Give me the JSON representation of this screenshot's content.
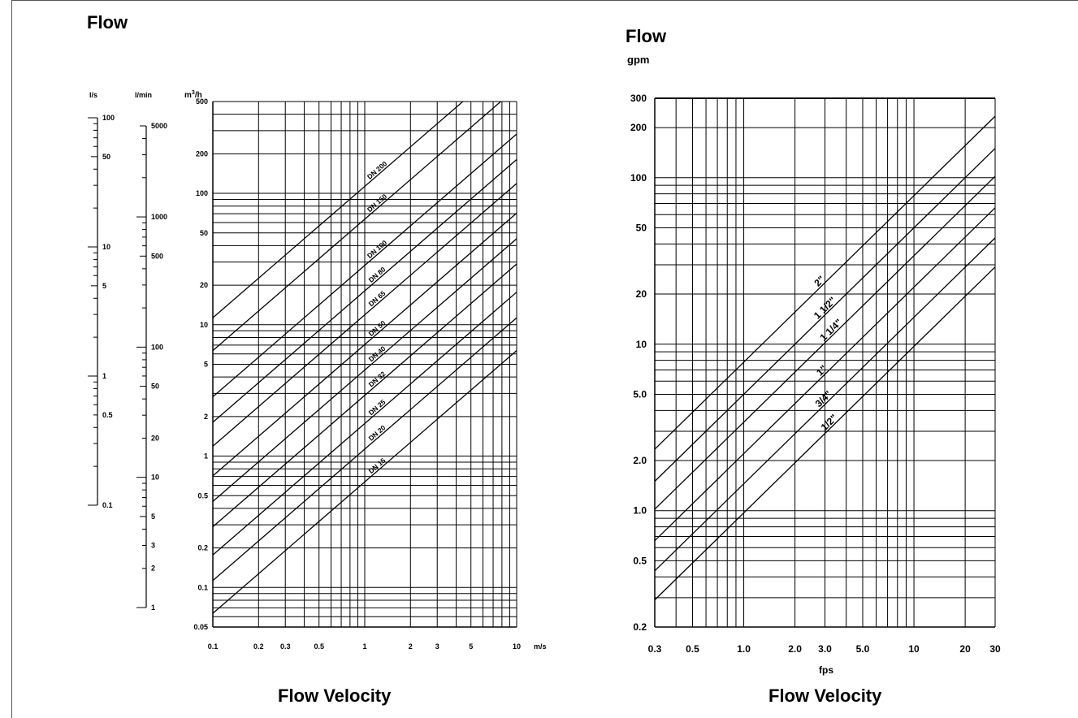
{
  "left": {
    "title": "Flow",
    "footer": "Flow Velocity"
  },
  "right": {
    "title": "Flow",
    "footer": "Flow Velocity",
    "ylabel": "gpm",
    "xlabel": "fps"
  },
  "chart_data": [
    {
      "type": "line",
      "title": "Flow",
      "xlabel": "Flow Velocity",
      "x_unit_label": "m/s",
      "ylabel": "m3/h",
      "x_scale": "log",
      "y_scale": "log",
      "xlim": [
        0.1,
        10
      ],
      "ylim": [
        0.05,
        500
      ],
      "x_ticks": [
        0.1,
        0.2,
        0.3,
        0.5,
        1,
        2,
        3,
        5,
        10
      ],
      "x_tick_labels": [
        "0.1",
        "0.2",
        "0.3",
        "0.5",
        "1",
        "2",
        "3",
        "5",
        "10"
      ],
      "y_ticks": [
        0.05,
        0.1,
        0.2,
        0.5,
        1,
        2,
        5,
        10,
        20,
        50,
        100,
        200,
        500
      ],
      "y_tick_labels": [
        "0.05",
        "0.1",
        "0.2",
        "0.5",
        "1",
        "2",
        "5",
        "10",
        "20",
        "50",
        "100",
        "200",
        "500"
      ],
      "series": [
        {
          "name": "DN 200",
          "flow_at_1ms": 113
        },
        {
          "name": "DN 150",
          "flow_at_1ms": 63.6
        },
        {
          "name": "DN 100",
          "flow_at_1ms": 28.3
        },
        {
          "name": "DN 80",
          "flow_at_1ms": 18.1
        },
        {
          "name": "DN 65",
          "flow_at_1ms": 11.9
        },
        {
          "name": "DN 50",
          "flow_at_1ms": 7.07
        },
        {
          "name": "DN 40",
          "flow_at_1ms": 4.52
        },
        {
          "name": "DN 32",
          "flow_at_1ms": 2.9
        },
        {
          "name": "DN 25",
          "flow_at_1ms": 1.77
        },
        {
          "name": "DN 20",
          "flow_at_1ms": 1.13
        },
        {
          "name": "DN 15",
          "flow_at_1ms": 0.636
        }
      ],
      "side_scales": [
        {
          "unit": "l/s",
          "range": [
            0.1,
            100
          ],
          "labels": [
            "100",
            "50",
            "10",
            "5",
            "1",
            "0.5",
            "0.1"
          ],
          "label_values": [
            100,
            50,
            10,
            5,
            1,
            0.5,
            0.1
          ]
        },
        {
          "unit": "l/min",
          "range": [
            1,
            5000
          ],
          "labels": [
            "5000",
            "1000",
            "500",
            "100",
            "50",
            "20",
            "10",
            "5",
            "3",
            "2",
            "1"
          ],
          "label_values": [
            5000,
            1000,
            500,
            100,
            50,
            20,
            10,
            5,
            3,
            2,
            1
          ]
        }
      ]
    },
    {
      "type": "line",
      "title": "Flow",
      "xlabel": "fps",
      "ylabel": "gpm",
      "x_scale": "log",
      "y_scale": "log",
      "xlim": [
        0.3,
        30
      ],
      "ylim": [
        0.2,
        300
      ],
      "x_ticks": [
        0.3,
        0.5,
        1,
        2,
        3,
        5,
        10,
        20,
        30
      ],
      "x_tick_labels": [
        "0.3",
        "0.5",
        "1.0",
        "2.0",
        "3.0",
        "5.0",
        "10",
        "20",
        "30"
      ],
      "y_ticks": [
        0.2,
        0.5,
        1,
        2,
        5,
        10,
        20,
        50,
        100,
        200,
        300
      ],
      "y_tick_labels": [
        "0.2",
        "0.5",
        "1.0",
        "2.0",
        "5.0",
        "10",
        "20",
        "50",
        "100",
        "200",
        "300"
      ],
      "series": [
        {
          "name": "2\"",
          "flow_at_1fps": 7.8
        },
        {
          "name": "1 1/2\"",
          "flow_at_1fps": 5.0
        },
        {
          "name": "1 1/4\"",
          "flow_at_1fps": 3.4
        },
        {
          "name": "1\"",
          "flow_at_1fps": 2.2
        },
        {
          "name": "3/4\"",
          "flow_at_1fps": 1.45
        },
        {
          "name": "1/2\"",
          "flow_at_1fps": 0.97
        }
      ]
    }
  ]
}
